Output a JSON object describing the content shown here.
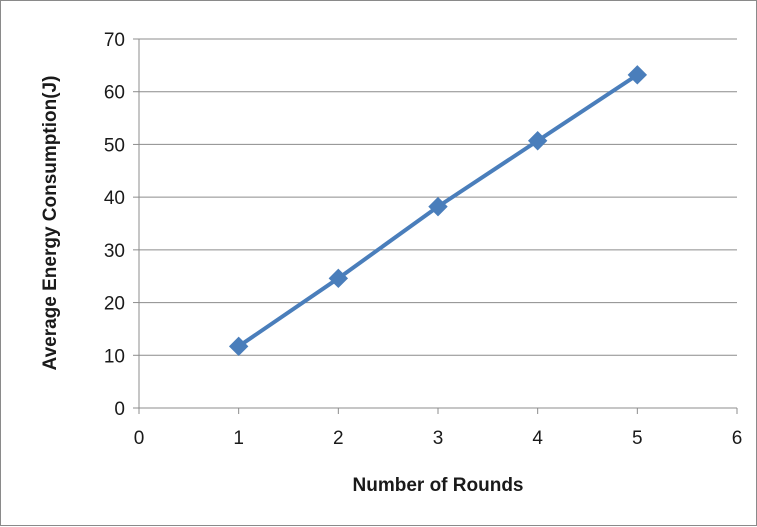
{
  "chart_data": {
    "type": "line",
    "title": "",
    "xlabel": "Number of Rounds",
    "ylabel": "Average Energy Consumption(J)",
    "xlim": [
      0,
      6
    ],
    "ylim": [
      0,
      70
    ],
    "x_ticks": [
      "0",
      "1",
      "2",
      "3",
      "4",
      "5",
      "6"
    ],
    "y_ticks": [
      "0",
      "10",
      "20",
      "30",
      "40",
      "50",
      "60",
      "70"
    ],
    "grid": "horizontal",
    "legend": "none",
    "series": [
      {
        "color": "#4a7ebb",
        "marker": "diamond",
        "x": [
          1,
          2,
          3,
          4,
          5
        ],
        "y": [
          11.7,
          24.6,
          38.2,
          50.7,
          63.2
        ]
      }
    ]
  }
}
